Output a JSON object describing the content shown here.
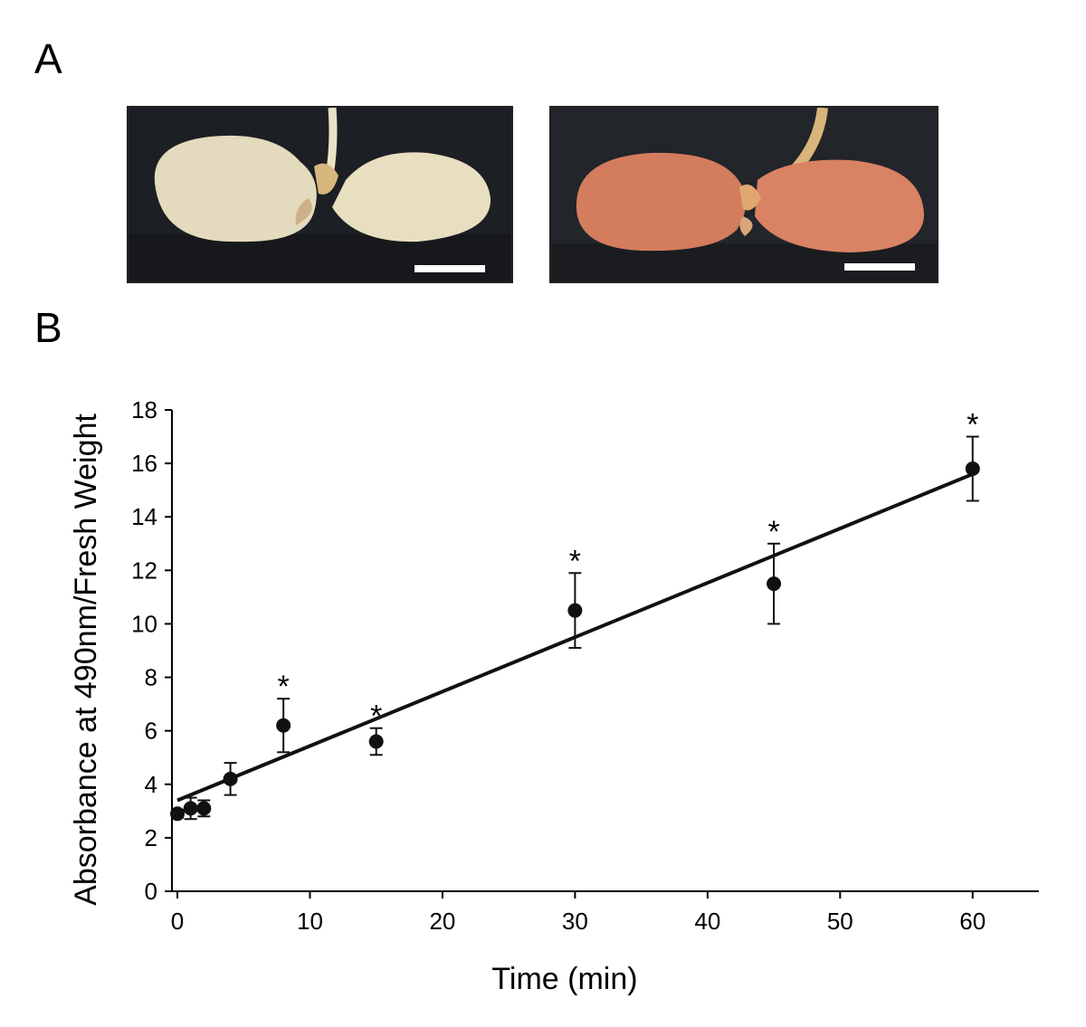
{
  "panels": {
    "a_label": "A",
    "b_label": "B"
  },
  "photos": {
    "left": {
      "description_icon": "white-cotyledon-seedling-photo",
      "bg_color": "#1c1f24",
      "seed_color": "#e6dcc0",
      "scale_bar_color": "#ffffff"
    },
    "right": {
      "description_icon": "red-stained-cotyledon-seedling-photo",
      "bg_color": "#22252a",
      "seed_color": "#d97f62",
      "scale_bar_color": "#ffffff"
    }
  },
  "chart_data": {
    "type": "scatter",
    "title": "",
    "xlabel": "Time (min)",
    "ylabel": "Absorbance at 490nm/Fresh Weight",
    "xlim": [
      0,
      65
    ],
    "ylim": [
      0,
      18
    ],
    "xticks": [
      0,
      10,
      20,
      30,
      40,
      50,
      60
    ],
    "yticks": [
      0,
      2,
      4,
      6,
      8,
      10,
      12,
      14,
      16,
      18
    ],
    "grid": false,
    "series": [
      {
        "name": "Absorbance",
        "x": [
          0,
          1,
          2,
          4,
          8,
          15,
          30,
          45,
          60
        ],
        "y": [
          2.9,
          3.1,
          3.1,
          4.2,
          6.2,
          5.6,
          10.5,
          11.5,
          15.8
        ],
        "err": [
          0.15,
          0.4,
          0.3,
          0.6,
          1.0,
          0.5,
          1.4,
          1.5,
          1.2
        ],
        "significant": [
          false,
          false,
          false,
          false,
          true,
          true,
          true,
          true,
          true
        ],
        "marker_color": "#111111"
      }
    ],
    "significance_marker": "*",
    "trendline": {
      "x0": 0,
      "y0": 3.4,
      "x1": 60,
      "y1": 15.6
    }
  }
}
